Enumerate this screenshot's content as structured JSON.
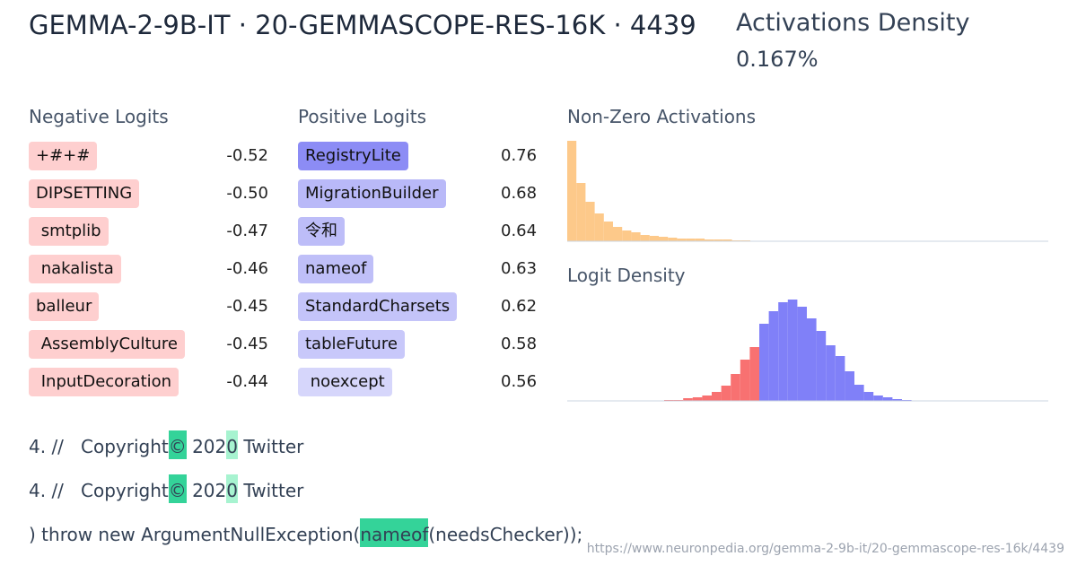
{
  "header": {
    "title": "GEMMA-2-9B-IT · 20-GEMMASCOPE-RES-16K · 4439",
    "density_label": "Activations Density",
    "density_value": "0.167%"
  },
  "negative_logits": {
    "title": "Negative Logits",
    "color": "#fecfcf",
    "items": [
      {
        "token": "+#+#",
        "value": "-0.52"
      },
      {
        "token": "DIPSETTING",
        "value": "-0.50"
      },
      {
        "token": " smtplib",
        "value": "-0.47"
      },
      {
        "token": " nakalista",
        "value": "-0.46"
      },
      {
        "token": "balleur",
        "value": "-0.45"
      },
      {
        "token": " AssemblyCulture",
        "value": "-0.45"
      },
      {
        "token": " InputDecoration",
        "value": "-0.44"
      }
    ]
  },
  "positive_logits": {
    "title": "Positive Logits",
    "items": [
      {
        "token": "RegistryLite",
        "value": "0.76",
        "color": "#8c8cf5"
      },
      {
        "token": "MigrationBuilder",
        "value": "0.68",
        "color": "#b9b9f8"
      },
      {
        "token": "令和",
        "value": "0.64",
        "color": "#bdbdf8"
      },
      {
        "token": "nameof",
        "value": "0.63",
        "color": "#bfbff8"
      },
      {
        "token": "StandardCharsets",
        "value": "0.62",
        "color": "#c4c4f9"
      },
      {
        "token": "tableFuture",
        "value": "0.58",
        "color": "#c8c8fa"
      },
      {
        "token": " noexcept",
        "value": "0.56",
        "color": "#d6d6fb"
      }
    ]
  },
  "activations_histogram": {
    "type": "bar",
    "title": "Non-Zero Activations",
    "color": "#fdc98a",
    "values": [
      112,
      65,
      44,
      31,
      22,
      16,
      12,
      10,
      7,
      6,
      5,
      4,
      3,
      3,
      3,
      2,
      2,
      2,
      1,
      1
    ]
  },
  "logit_density": {
    "type": "bar",
    "title": "Logit Density",
    "values": [
      1,
      1,
      3,
      4,
      6,
      10,
      17,
      30,
      46,
      60,
      86,
      100,
      110,
      113,
      105,
      92,
      78,
      62,
      50,
      33,
      18,
      10,
      6,
      4,
      2,
      1
    ],
    "colors": [
      "#f87171",
      "#f87171",
      "#f87171",
      "#f87171",
      "#f87171",
      "#f87171",
      "#f87171",
      "#f87171",
      "#f87171",
      "#f87171",
      "#8080f8",
      "#8080f8",
      "#8080f8",
      "#8080f8",
      "#8080f8",
      "#8080f8",
      "#8080f8",
      "#8080f8",
      "#8080f8",
      "#8080f8",
      "#8080f8",
      "#8080f8",
      "#8080f8",
      "#8080f8",
      "#8080f8",
      "#8080f8"
    ]
  },
  "examples": [
    {
      "tokens": [
        {
          "text": "4. //"
        },
        {
          "text": "   Copyright"
        },
        {
          "text": "©",
          "highlight": "#34d399"
        },
        {
          "text": " 202"
        },
        {
          "text": "0",
          "highlight": "#a7f3d0"
        },
        {
          "text": " Twitter"
        }
      ]
    },
    {
      "tokens": [
        {
          "text": "4. //"
        },
        {
          "text": "   Copyright"
        },
        {
          "text": "©",
          "highlight": "#34d399"
        },
        {
          "text": " 202"
        },
        {
          "text": "0",
          "highlight": "#a7f3d0"
        },
        {
          "text": " Twitter"
        }
      ]
    },
    {
      "tokens": [
        {
          "text": ")"
        },
        {
          "text": " throw"
        },
        {
          "text": " new"
        },
        {
          "text": " Argument"
        },
        {
          "text": "NullException("
        },
        {
          "text": "nameof",
          "highlight": "#34d399"
        },
        {
          "text": "(needsChecker));"
        }
      ]
    }
  ],
  "url": "https://www.neuronpedia.org/gemma-2-9b-it/20-gemmascope-res-16k/4439"
}
